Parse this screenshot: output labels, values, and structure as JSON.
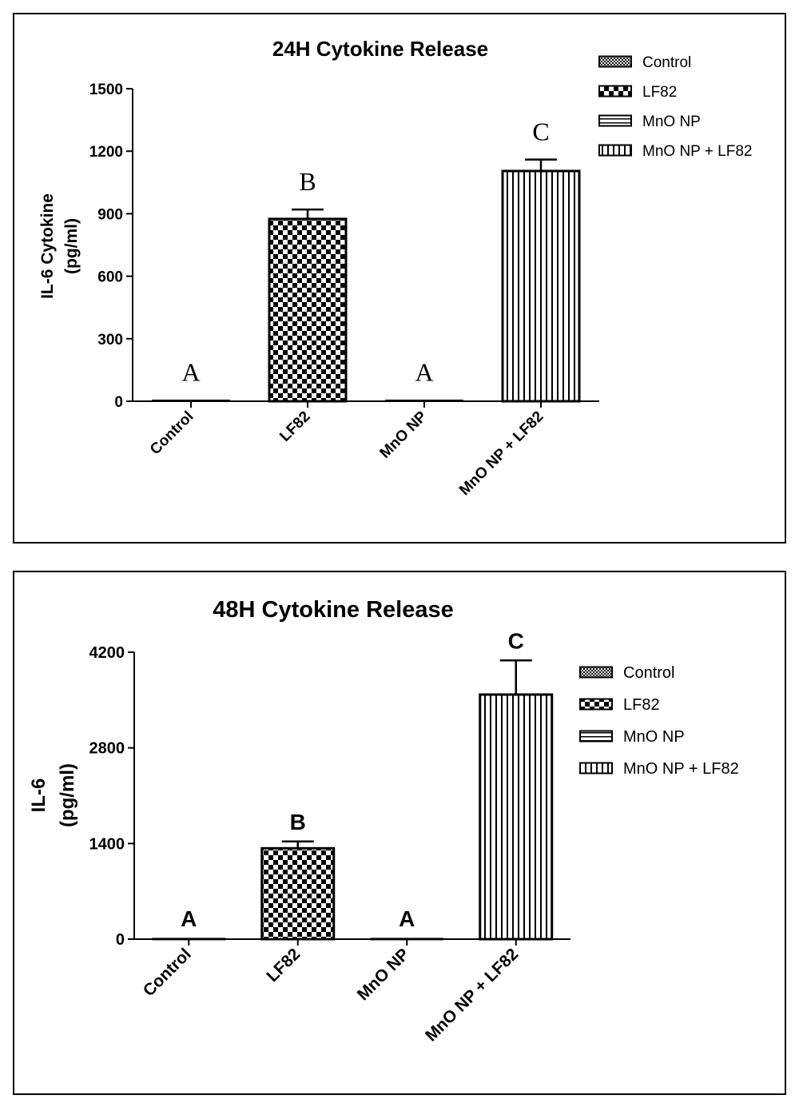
{
  "chart_data": [
    {
      "type": "bar",
      "title": "24H Cytokine Release",
      "xlabel": "",
      "ylabel_lines": [
        "IL-6 Cytokine",
        "(pg/ml)"
      ],
      "categories": [
        "Control",
        "LF82",
        "MnO NP",
        "MnO NP + LF82"
      ],
      "values": [
        5,
        875,
        5,
        1105
      ],
      "errors": [
        0,
        45,
        0,
        55
      ],
      "significance_letters": [
        "A",
        "B",
        "A",
        "C"
      ],
      "yticks": [
        "0",
        "300",
        "600",
        "900",
        "1200",
        "1500"
      ],
      "ylim": [
        0,
        1500
      ],
      "legend": [
        "Control",
        "LF82",
        "MnO NP",
        "MnO NP + LF82"
      ],
      "legend_position": "top-right",
      "grid": false
    },
    {
      "type": "bar",
      "title": "48H Cytokine Release",
      "xlabel": "",
      "ylabel_lines": [
        "IL-6",
        "(pg/ml)"
      ],
      "categories": [
        "Control",
        "LF82",
        "MnO NP",
        "MnO NP + LF82"
      ],
      "values": [
        10,
        1330,
        10,
        3580
      ],
      "errors": [
        0,
        100,
        0,
        500
      ],
      "significance_letters": [
        "A",
        "B",
        "A",
        "C"
      ],
      "yticks": [
        "0",
        "1400",
        "2800",
        "4200"
      ],
      "ylim": [
        0,
        4200
      ],
      "legend": [
        "Control",
        "LF82",
        "MnO NP",
        "MnO NP + LF82"
      ],
      "legend_position": "right",
      "grid": false
    }
  ]
}
